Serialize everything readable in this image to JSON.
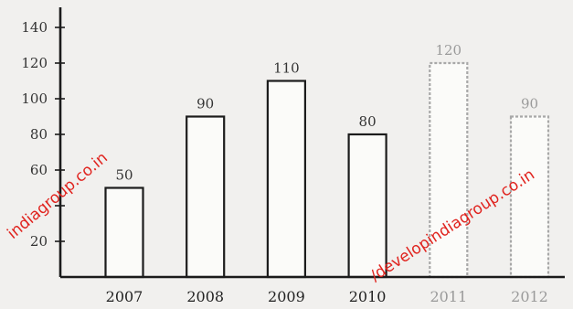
{
  "chart_data": {
    "type": "bar",
    "categories": [
      "2007",
      "2008",
      "2009",
      "2010",
      "2011",
      "2012"
    ],
    "values": [
      50,
      90,
      110,
      80,
      120,
      90
    ],
    "ylim": [
      0,
      140
    ],
    "yticks": [
      20,
      40,
      60,
      80,
      100,
      120,
      140
    ],
    "ytick_labels": [
      "20",
      "",
      "60",
      "80",
      "100",
      "120",
      "140"
    ],
    "grid": false,
    "bar_color": "#fbfbf9",
    "bar_edge_color": "#1c1c1c",
    "faded_categories": [
      "2011",
      "2012"
    ]
  },
  "watermarks": {
    "left": "indiagroup.co.in",
    "right": "/developindiagroup.co.in",
    "color": "#e0231e"
  }
}
